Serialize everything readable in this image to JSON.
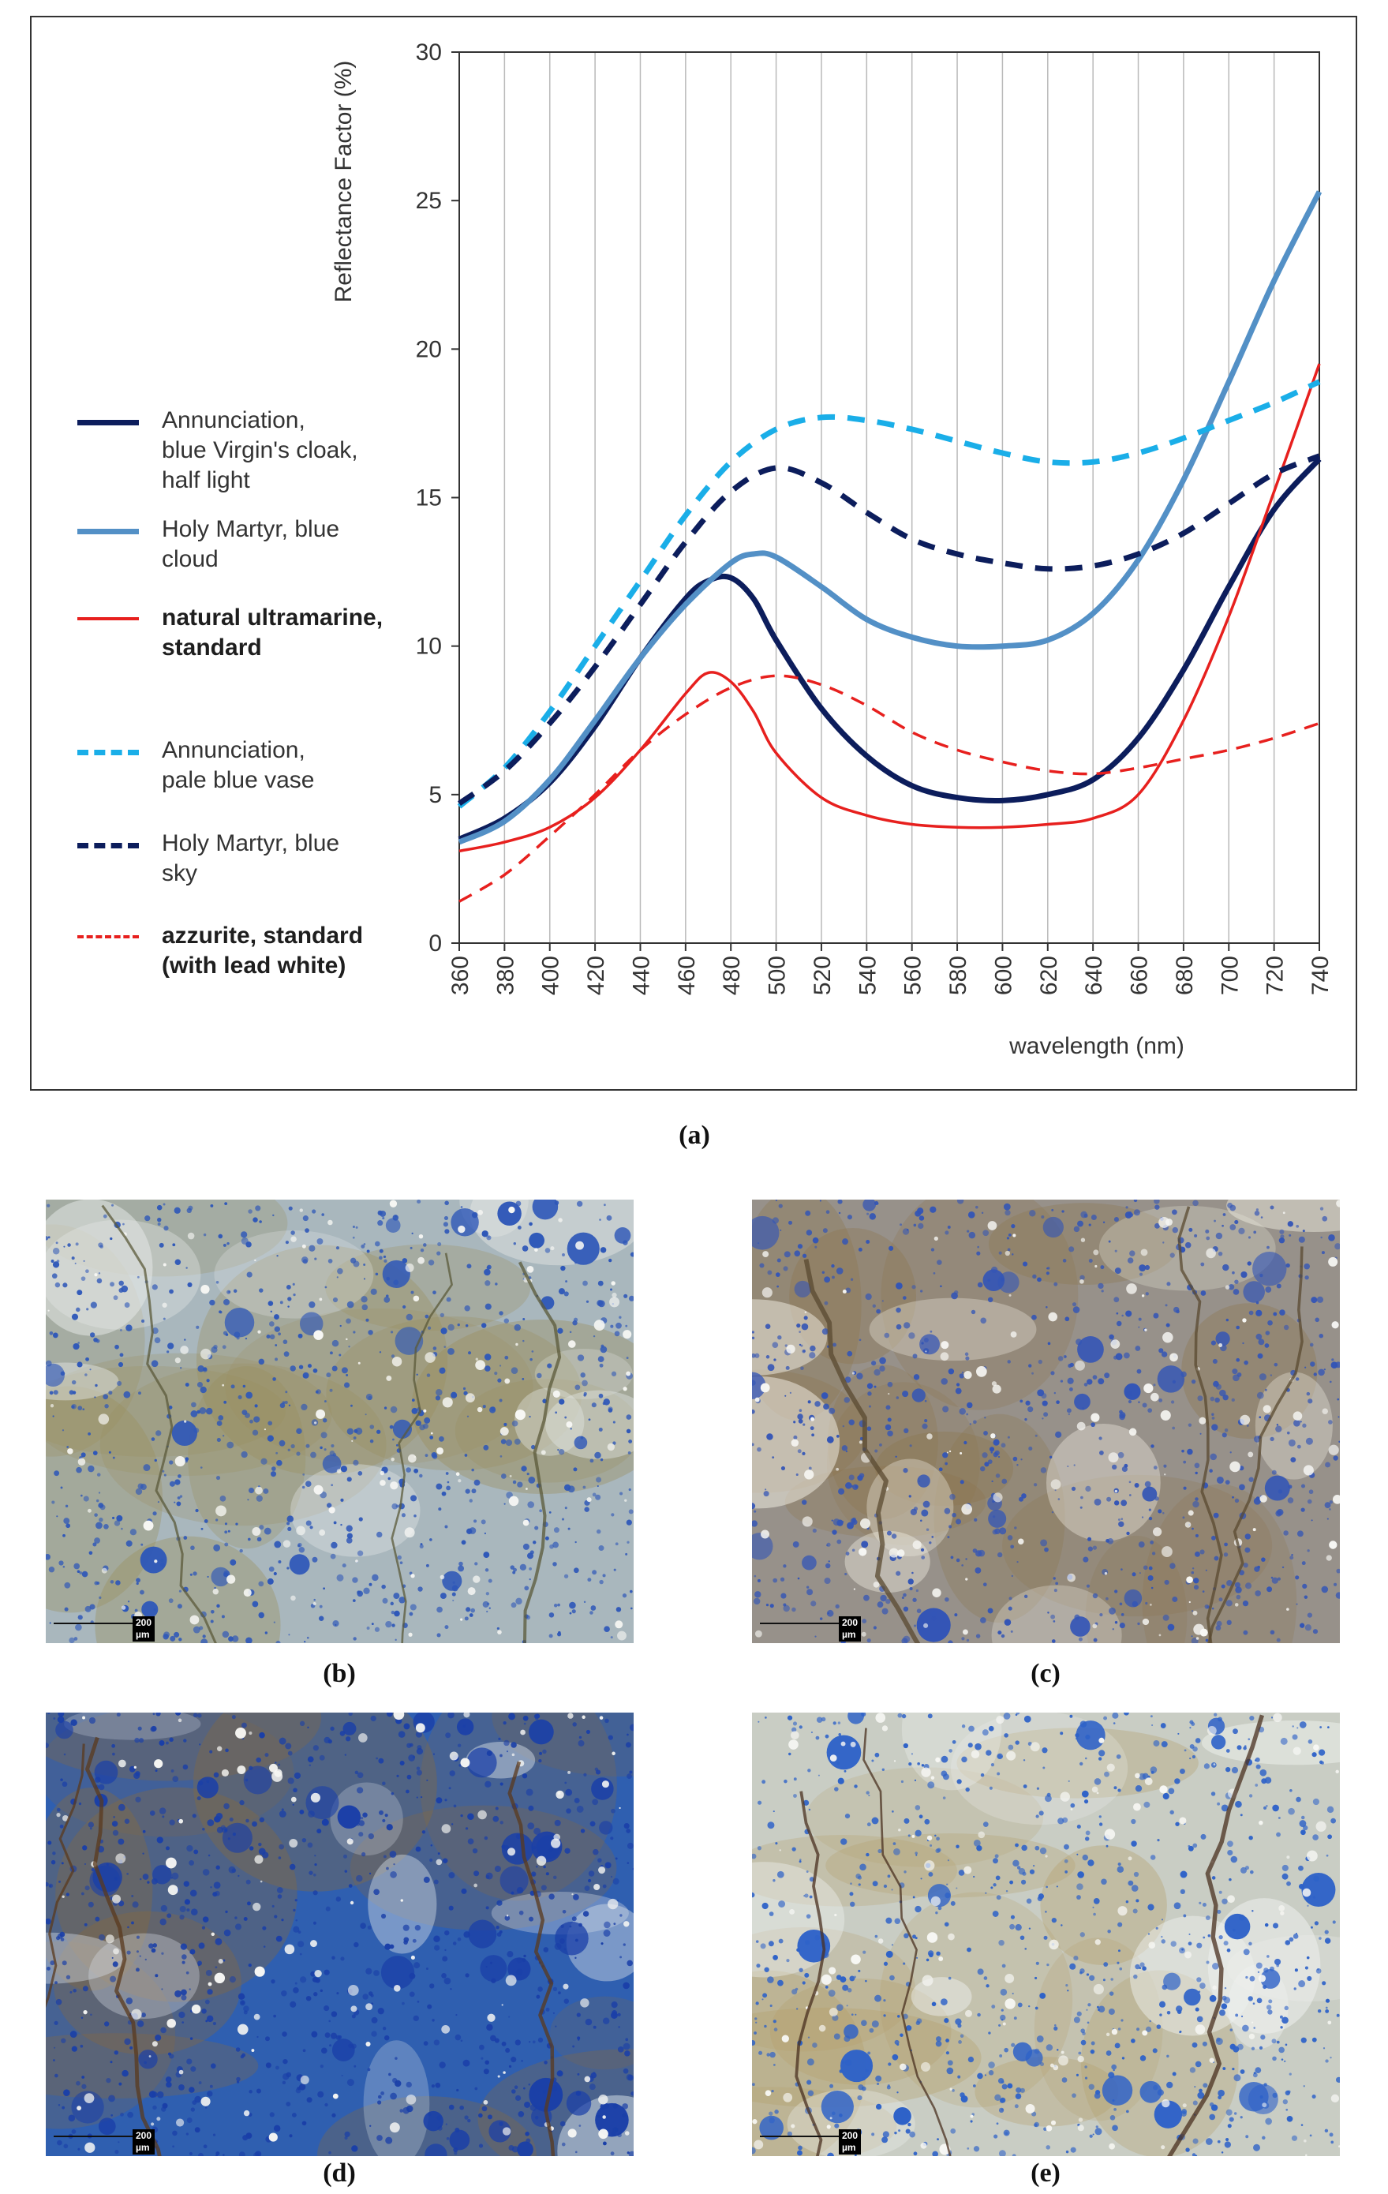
{
  "chart_data": {
    "type": "line",
    "title": "",
    "xlabel": "wavelength (nm)",
    "ylabel": "Reflectance Factor (%)",
    "xlim": [
      360,
      740
    ],
    "ylim": [
      0,
      30
    ],
    "grid": "vertical",
    "x_ticks": [
      360,
      380,
      400,
      420,
      440,
      460,
      480,
      500,
      520,
      540,
      560,
      580,
      600,
      620,
      640,
      660,
      680,
      700,
      720,
      740
    ],
    "y_ticks": [
      0,
      5,
      10,
      15,
      20,
      25,
      30
    ],
    "legend_position": "left",
    "series": [
      {
        "name": "Annunciation, blue Virgin's cloak, half light",
        "color": "#0c1d5c",
        "style": "solid",
        "weight": "thick",
        "x": [
          360,
          380,
          400,
          420,
          440,
          460,
          470,
          480,
          490,
          500,
          520,
          540,
          560,
          580,
          600,
          620,
          640,
          660,
          680,
          700,
          720,
          740
        ],
        "y": [
          3.5,
          4.2,
          5.4,
          7.3,
          9.6,
          11.6,
          12.2,
          12.3,
          11.6,
          10.2,
          7.9,
          6.3,
          5.3,
          4.9,
          4.8,
          5.0,
          5.5,
          6.9,
          9.2,
          12.0,
          14.6,
          16.3
        ]
      },
      {
        "name": "Holy Martyr,  blue cloud",
        "color": "#5390c6",
        "style": "solid",
        "weight": "thick",
        "x": [
          360,
          380,
          400,
          420,
          440,
          460,
          480,
          490,
          500,
          520,
          540,
          560,
          580,
          600,
          620,
          640,
          660,
          680,
          700,
          720,
          740
        ],
        "y": [
          3.4,
          4.1,
          5.5,
          7.5,
          9.6,
          11.4,
          12.8,
          13.1,
          13.0,
          12.0,
          10.9,
          10.3,
          10.0,
          10.0,
          10.2,
          11.1,
          12.9,
          15.6,
          18.9,
          22.3,
          25.3
        ]
      },
      {
        "name": "natural ultramarine, standard",
        "color": "#e7201e",
        "style": "solid",
        "weight": "thin",
        "x": [
          360,
          380,
          400,
          420,
          440,
          460,
          470,
          480,
          490,
          500,
          520,
          540,
          560,
          580,
          600,
          620,
          640,
          660,
          680,
          700,
          720,
          740
        ],
        "y": [
          3.1,
          3.4,
          3.9,
          4.9,
          6.5,
          8.4,
          9.1,
          8.8,
          7.8,
          6.4,
          4.9,
          4.3,
          4.0,
          3.9,
          3.9,
          4.0,
          4.2,
          5.0,
          7.5,
          11.0,
          15.2,
          19.5
        ]
      },
      {
        "name": "Annunciation, pale blue vase",
        "color": "#1aaee8",
        "style": "dashed",
        "weight": "thick",
        "x": [
          360,
          380,
          400,
          420,
          440,
          460,
          480,
          500,
          520,
          540,
          560,
          580,
          600,
          620,
          640,
          660,
          680,
          700,
          720,
          740
        ],
        "y": [
          4.6,
          5.9,
          7.8,
          10.0,
          12.2,
          14.4,
          16.2,
          17.3,
          17.7,
          17.6,
          17.3,
          16.9,
          16.5,
          16.2,
          16.2,
          16.5,
          17.0,
          17.6,
          18.2,
          18.9
        ]
      },
      {
        "name": "Holy Martyr,  blue sky",
        "color": "#0c1d5c",
        "style": "dashed",
        "weight": "thick",
        "x": [
          360,
          380,
          400,
          420,
          440,
          460,
          480,
          500,
          520,
          540,
          560,
          580,
          600,
          620,
          640,
          660,
          680,
          700,
          720,
          740
        ],
        "y": [
          4.7,
          5.8,
          7.4,
          9.3,
          11.4,
          13.5,
          15.2,
          16.0,
          15.5,
          14.5,
          13.6,
          13.1,
          12.8,
          12.6,
          12.7,
          13.1,
          13.8,
          14.8,
          15.8,
          16.4
        ]
      },
      {
        "name": "azzurite, standard\n(with lead white)",
        "color": "#e7201e",
        "style": "dashed",
        "weight": "thin",
        "x": [
          360,
          380,
          400,
          420,
          440,
          460,
          480,
          500,
          520,
          540,
          560,
          580,
          600,
          620,
          640,
          660,
          680,
          700,
          720,
          740
        ],
        "y": [
          1.4,
          2.3,
          3.6,
          5.0,
          6.5,
          7.7,
          8.6,
          9.0,
          8.7,
          8.0,
          7.1,
          6.5,
          6.1,
          5.8,
          5.7,
          5.9,
          6.2,
          6.5,
          6.9,
          7.4
        ]
      }
    ]
  },
  "legend": [
    {
      "label": "Annunciation,\nblue Virgin's cloak,\nhalf light",
      "color": "#0c1d5c",
      "style": "solid",
      "bold": false
    },
    {
      "label": "Holy Martyr,  blue\ncloud",
      "color": "#5390c6",
      "style": "solid",
      "bold": false
    },
    {
      "label": "natural ultramarine,\nstandard",
      "color": "#e7201e",
      "style": "solid",
      "bold": true
    },
    {
      "label": "Annunciation,\npale blue vase",
      "color": "#1aaee8",
      "style": "dashed",
      "bold": false
    },
    {
      "label": "Holy Martyr,  blue\nsky",
      "color": "#0c1d5c",
      "style": "dashed",
      "bold": false
    },
    {
      "label": "azzurite, standard\n(with lead white)",
      "color": "#e7201e",
      "style": "dashed",
      "bold": true
    }
  ],
  "captions": {
    "a": "(a)",
    "b": "(b)",
    "c": "(c)",
    "d": "(d)",
    "e": "(e)"
  },
  "micrographs": [
    {
      "id": "b",
      "scale_label": "200 µm",
      "palette": {
        "base": "#a9b7bd",
        "blue": "#2e57b8",
        "light": "#e4e8e6",
        "stain": "#9a8d5a",
        "crack": "#5b5a3a"
      }
    },
    {
      "id": "c",
      "scale_label": "200 µm",
      "palette": {
        "base": "#97918a",
        "blue": "#3355b6",
        "light": "#f1eee2",
        "stain": "#8c7449",
        "crack": "#5a4a30"
      }
    },
    {
      "id": "d",
      "scale_label": "200 µm",
      "palette": {
        "base": "#2f5fb0",
        "blue": "#1a3fa8",
        "light": "#d6dee6",
        "stain": "#8a6a3a",
        "crack": "#5a3a1e"
      }
    },
    {
      "id": "e",
      "scale_label": "200 µm",
      "palette": {
        "base": "#c9cdc4",
        "blue": "#2e62c8",
        "light": "#eef1ee",
        "stain": "#b39e6a",
        "crack": "#4a3020"
      }
    }
  ]
}
